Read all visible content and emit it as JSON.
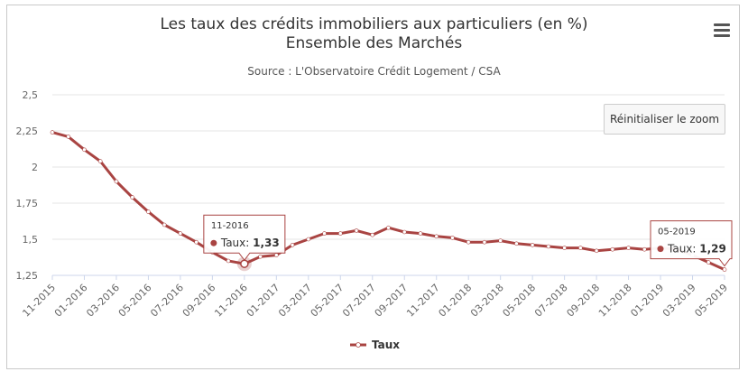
{
  "chart_data": {
    "type": "line",
    "title_line1": "Les taux des crédits immobiliers aux particuliers (en %)",
    "title_line2": "Ensemble des Marchés",
    "subtitle": "Source : L'Observatoire Crédit Logement / CSA",
    "xlabel": "",
    "ylabel": "",
    "ylim": [
      1.25,
      2.5
    ],
    "yticks": [
      1.25,
      1.5,
      1.75,
      2,
      2.25,
      2.5
    ],
    "ytick_labels": [
      "1,25",
      "1,5",
      "1,75",
      "2",
      "2,25",
      "2,5"
    ],
    "x": [
      "11-2015",
      "12-2015",
      "01-2016",
      "02-2016",
      "03-2016",
      "04-2016",
      "05-2016",
      "06-2016",
      "07-2016",
      "08-2016",
      "09-2016",
      "10-2016",
      "11-2016",
      "12-2016",
      "01-2017",
      "02-2017",
      "03-2017",
      "04-2017",
      "05-2017",
      "06-2017",
      "07-2017",
      "08-2017",
      "09-2017",
      "10-2017",
      "11-2017",
      "12-2017",
      "01-2018",
      "02-2018",
      "03-2018",
      "04-2018",
      "05-2018",
      "06-2018",
      "07-2018",
      "08-2018",
      "09-2018",
      "10-2018",
      "11-2018",
      "12-2018",
      "01-2019",
      "02-2019",
      "03-2019",
      "04-2019",
      "05-2019"
    ],
    "xtick_labels": [
      "11-2015",
      "01-2016",
      "03-2016",
      "05-2016",
      "07-2016",
      "09-2016",
      "11-2016",
      "01-2017",
      "03-2017",
      "05-2017",
      "07-2017",
      "09-2017",
      "11-2017",
      "01-2018",
      "03-2018",
      "05-2018",
      "07-2018",
      "09-2018",
      "11-2018",
      "01-2019",
      "03-2019",
      "05-2019"
    ],
    "series": [
      {
        "name": "Taux",
        "color": "#a94442",
        "values": [
          2.24,
          2.21,
          2.12,
          2.04,
          1.9,
          1.79,
          1.69,
          1.6,
          1.54,
          1.48,
          1.41,
          1.35,
          1.33,
          1.38,
          1.39,
          1.46,
          1.5,
          1.54,
          1.54,
          1.56,
          1.53,
          1.58,
          1.55,
          1.54,
          1.52,
          1.51,
          1.48,
          1.48,
          1.49,
          1.47,
          1.46,
          1.45,
          1.44,
          1.44,
          1.42,
          1.43,
          1.44,
          1.43,
          1.44,
          1.43,
          1.39,
          1.34,
          1.29
        ]
      }
    ],
    "grid": true,
    "legend_position": "bottom-center",
    "tooltips": [
      {
        "date": "11-2016",
        "label": "Taux",
        "value": "1,33"
      },
      {
        "date": "05-2019",
        "label": "Taux",
        "value": "1,29"
      }
    ]
  },
  "ui": {
    "reset_zoom_label": "Réinitialiser le zoom",
    "menu_icon": "hamburger-menu-icon"
  }
}
